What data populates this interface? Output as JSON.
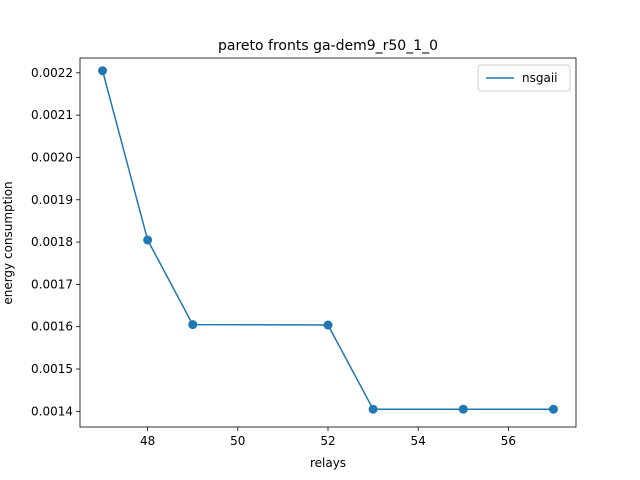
{
  "chart_data": {
    "type": "line",
    "title": "pareto fronts ga-dem9_r50_1_0",
    "xlabel": "relays",
    "ylabel": "energy consumption",
    "xlim": [
      46.5,
      57.5
    ],
    "ylim": [
      0.001363,
      0.002235
    ],
    "xticks": [
      48,
      50,
      52,
      54,
      56
    ],
    "yticks": [
      0.0014,
      0.0015,
      0.0016,
      0.0017,
      0.0018,
      0.0019,
      0.002,
      0.0021,
      0.0022
    ],
    "grid": false,
    "legend_position": "top-right",
    "series": [
      {
        "name": "nsgaii",
        "color": "#1f77b4",
        "marker": "circle",
        "x": [
          47,
          48,
          49,
          52,
          53,
          55,
          57
        ],
        "y": [
          0.002205,
          0.001805,
          0.001605,
          0.001604,
          0.001405,
          0.001405,
          0.001405
        ]
      }
    ]
  }
}
